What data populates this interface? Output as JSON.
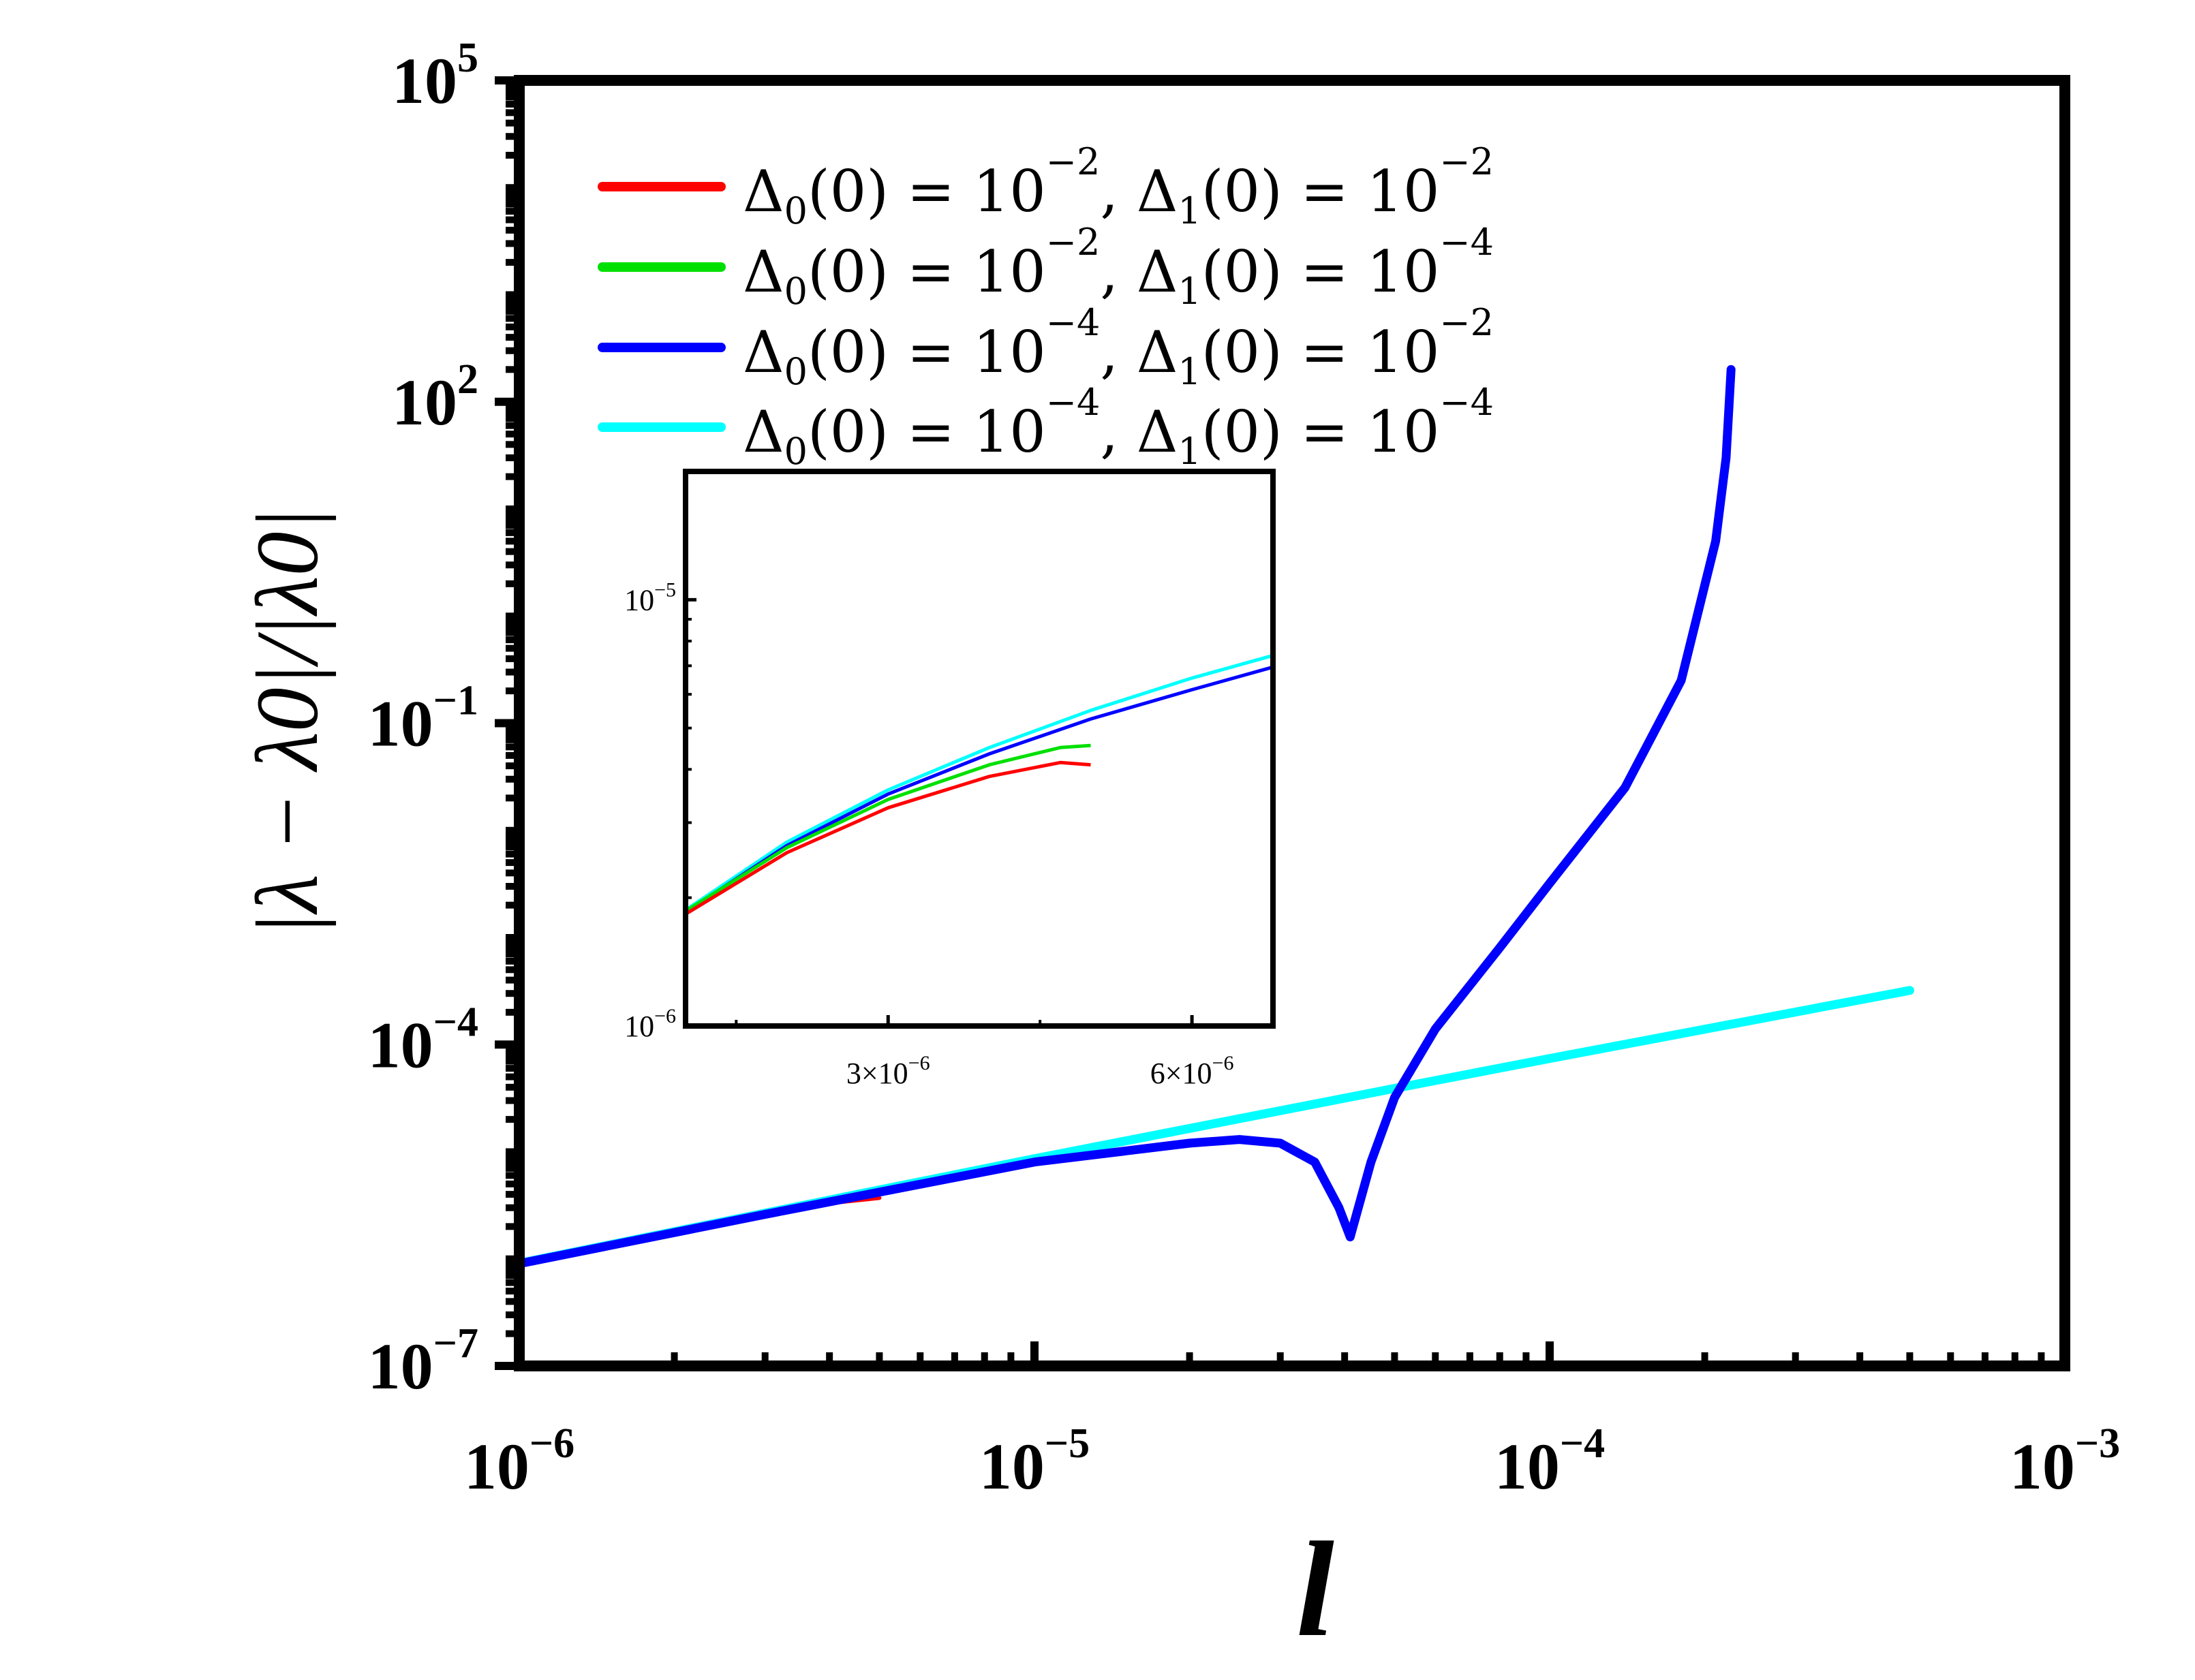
{
  "chart_data": [
    {
      "type": "line",
      "name": "main",
      "xscale": "log",
      "yscale": "log",
      "xlabel": "l",
      "ylabel": "|λ − λ0|/|λ0|",
      "xlim": [
        1e-06,
        0.001
      ],
      "ylim": [
        1e-07,
        100000.0
      ],
      "x_ticks": [
        {
          "base": "10",
          "exp": "−6"
        },
        {
          "base": "10",
          "exp": "−5"
        },
        {
          "base": "10",
          "exp": "−4"
        },
        {
          "base": "10",
          "exp": "−3"
        }
      ],
      "y_ticks": [
        {
          "base": "10",
          "exp": "−7"
        },
        {
          "base": "10",
          "exp": "−4"
        },
        {
          "base": "10",
          "exp": "−1"
        },
        {
          "base": "10",
          "exp": "2"
        },
        {
          "base": "10",
          "exp": "5"
        }
      ],
      "legend_position": "top-left",
      "series": [
        {
          "name": "Δ0(0) = 10^−2, Δ1(0) = 10^−2",
          "label": {
            "d0_exp": "−2",
            "d1_exp": "−2"
          },
          "color": "#ff0000",
          "x": [
            1e-06,
            2e-06,
            3e-06,
            4e-06,
            5e-06
          ],
          "y": [
            9e-07,
            1.8e-06,
            2.6e-06,
            3.3e-06,
            3.7e-06
          ]
        },
        {
          "name": "Δ0(0) = 10^−2, Δ1(0) = 10^−4",
          "label": {
            "d0_exp": "−2",
            "d1_exp": "−4"
          },
          "color": "#00e000",
          "x": [
            1e-06,
            2e-06,
            3e-06,
            4e-06,
            5e-06
          ],
          "y": [
            9.1e-07,
            1.85e-06,
            2.7e-06,
            3.5e-06,
            4e-06
          ]
        },
        {
          "name": "Δ0(0) = 10^−4, Δ1(0) = 10^−2",
          "label": {
            "d0_exp": "−4",
            "d1_exp": "−2"
          },
          "color": "#0000ff",
          "x": [
            1e-06,
            3e-06,
            1e-05,
            2e-05,
            2.5e-05,
            3e-05,
            3.5e-05,
            3.9e-05,
            4.1e-05,
            4.5e-05,
            5e-05,
            6e-05,
            8e-05,
            0.0001,
            0.00014,
            0.00018,
            0.00021,
            0.00022,
            0.000225
          ],
          "y": [
            9e-07,
            2.6e-06,
            8e-06,
            1.2e-05,
            1.3e-05,
            1.2e-05,
            8e-06,
            3e-06,
            1.6e-06,
            8e-06,
            3.2e-05,
            0.00014,
            0.0008,
            0.0032,
            0.025,
            0.25,
            5,
            30,
            200
          ]
        },
        {
          "name": "Δ0(0) = 10^−4, Δ1(0) = 10^−4",
          "label": {
            "d0_exp": "−4",
            "d1_exp": "−4"
          },
          "color": "#00ffff",
          "x": [
            1e-06,
            5e-06,
            1e-05,
            5e-05,
            0.0001,
            0.0005
          ],
          "y": [
            9.1e-07,
            4.4e-06,
            8.6e-06,
            3.9e-05,
            7.4e-05,
            0.00032
          ]
        }
      ]
    },
    {
      "type": "line",
      "name": "inset",
      "xscale": "linear",
      "yscale": "log",
      "xlim": [
        1e-06,
        6.8e-06
      ],
      "ylim": [
        1e-06,
        2e-05
      ],
      "x_ticks": [
        {
          "value": 3e-06,
          "mant": "3×10",
          "exp": "−6"
        },
        {
          "value": 6e-06,
          "mant": "6×10",
          "exp": "−6"
        }
      ],
      "y_ticks": [
        {
          "value": 1e-06,
          "base": "10",
          "exp": "−6"
        },
        {
          "value": 1e-05,
          "base": "10",
          "exp": "−5"
        }
      ],
      "series": [
        {
          "color": "#ff0000",
          "x": [
            1e-06,
            2e-06,
            3e-06,
            4e-06,
            4.7e-06,
            5e-06
          ],
          "y": [
            1.83e-06,
            2.55e-06,
            3.25e-06,
            3.85e-06,
            4.15e-06,
            4.1e-06
          ]
        },
        {
          "color": "#00e000",
          "x": [
            1e-06,
            2e-06,
            3e-06,
            4e-06,
            4.7e-06,
            5e-06
          ],
          "y": [
            1.86e-06,
            2.62e-06,
            3.4e-06,
            4.1e-06,
            4.5e-06,
            4.55e-06
          ]
        },
        {
          "color": "#0000ff",
          "x": [
            1e-06,
            2e-06,
            3e-06,
            4e-06,
            5e-06,
            6e-06,
            6.8e-06
          ],
          "y": [
            1.85e-06,
            2.65e-06,
            3.5e-06,
            4.35e-06,
            5.25e-06,
            6.15e-06,
            6.95e-06
          ]
        },
        {
          "color": "#00ffff",
          "x": [
            1e-06,
            2e-06,
            3e-06,
            4e-06,
            5e-06,
            6e-06,
            6.8e-06
          ],
          "y": [
            1.87e-06,
            2.7e-06,
            3.58e-06,
            4.5e-06,
            5.5e-06,
            6.55e-06,
            7.4e-06
          ]
        }
      ]
    }
  ]
}
